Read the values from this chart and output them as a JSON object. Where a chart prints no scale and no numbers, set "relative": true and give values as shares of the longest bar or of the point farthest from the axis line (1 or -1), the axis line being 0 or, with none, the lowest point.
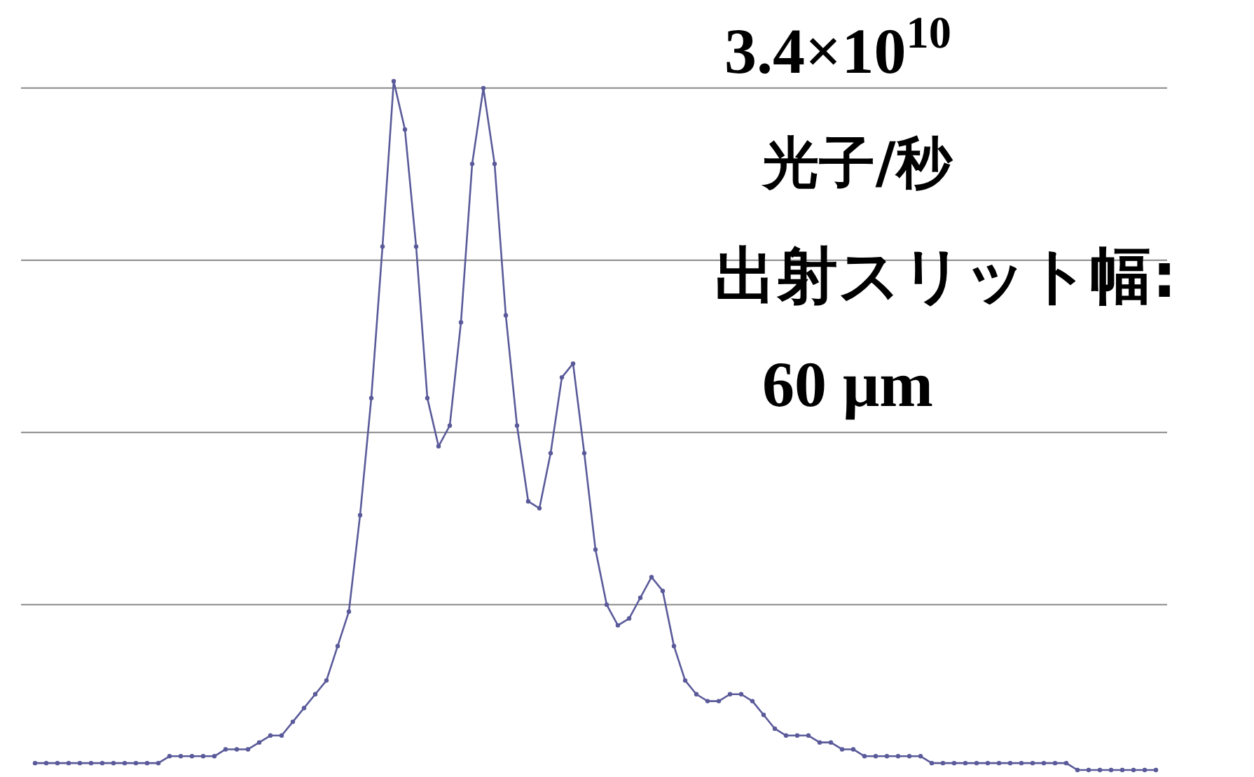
{
  "chart_data": {
    "type": "line",
    "relative": true,
    "color": "#5a5a9a",
    "marker": "circle",
    "line_style": "solid",
    "categories": [
      null,
      null,
      null,
      null,
      null,
      null,
      null,
      null,
      null,
      null,
      null,
      null,
      null,
      null,
      null,
      null,
      null,
      null,
      null,
      null,
      null,
      null,
      null,
      null,
      null,
      null,
      null,
      null,
      null,
      null,
      null,
      null,
      null,
      null,
      null,
      null,
      null,
      null,
      null,
      null,
      null,
      null,
      null,
      null,
      null,
      null,
      null,
      null,
      null,
      null,
      null,
      null,
      null,
      null,
      null,
      null,
      null,
      null,
      null,
      null,
      null,
      null,
      null,
      null,
      null,
      null,
      null,
      null,
      null,
      null,
      null,
      null,
      null,
      null,
      null,
      null,
      null,
      null,
      null,
      null,
      null,
      null,
      null,
      null,
      null,
      null,
      null,
      null,
      null,
      null,
      null,
      null,
      null,
      null,
      null,
      null,
      null,
      null,
      null,
      null,
      null
    ],
    "values": [
      0.01,
      0.01,
      0.01,
      0.01,
      0.01,
      0.01,
      0.01,
      0.01,
      0.01,
      0.01,
      0.01,
      0.01,
      0.02,
      0.02,
      0.02,
      0.02,
      0.02,
      0.03,
      0.03,
      0.03,
      0.04,
      0.05,
      0.05,
      0.07,
      0.09,
      0.11,
      0.13,
      0.18,
      0.23,
      0.37,
      0.54,
      0.76,
      1,
      0.93,
      0.76,
      0.54,
      0.47,
      0.5,
      0.65,
      0.88,
      0.99,
      0.88,
      0.66,
      0.5,
      0.39,
      0.38,
      0.46,
      0.57,
      0.59,
      0.46,
      0.32,
      0.24,
      0.21,
      0.22,
      0.25,
      0.28,
      0.26,
      0.18,
      0.13,
      0.11,
      0.1,
      0.1,
      0.11,
      0.11,
      0.1,
      0.08,
      0.06,
      0.05,
      0.05,
      0.05,
      0.04,
      0.04,
      0.03,
      0.03,
      0.02,
      0.02,
      0.02,
      0.02,
      0.02,
      0.02,
      0.01,
      0.01,
      0.01,
      0.01,
      0.01,
      0.01,
      0.01,
      0.01,
      0.01,
      0.01,
      0.01,
      0.01,
      0.01,
      0,
      0,
      0,
      0,
      0,
      0,
      0,
      0
    ],
    "ref_lines": [
      {
        "axis": "y",
        "value": 0.24,
        "color": "#888888"
      },
      {
        "axis": "y",
        "value": 0.49,
        "color": "#888888"
      },
      {
        "axis": "y",
        "value": 0.74,
        "color": "#888888"
      },
      {
        "axis": "y",
        "value": 0.99,
        "color": "#888888"
      }
    ],
    "annotations": [
      "3.4×10$^{10}$",
      "光子/秒",
      "出射スリット幅:",
      "60 μm"
    ]
  }
}
